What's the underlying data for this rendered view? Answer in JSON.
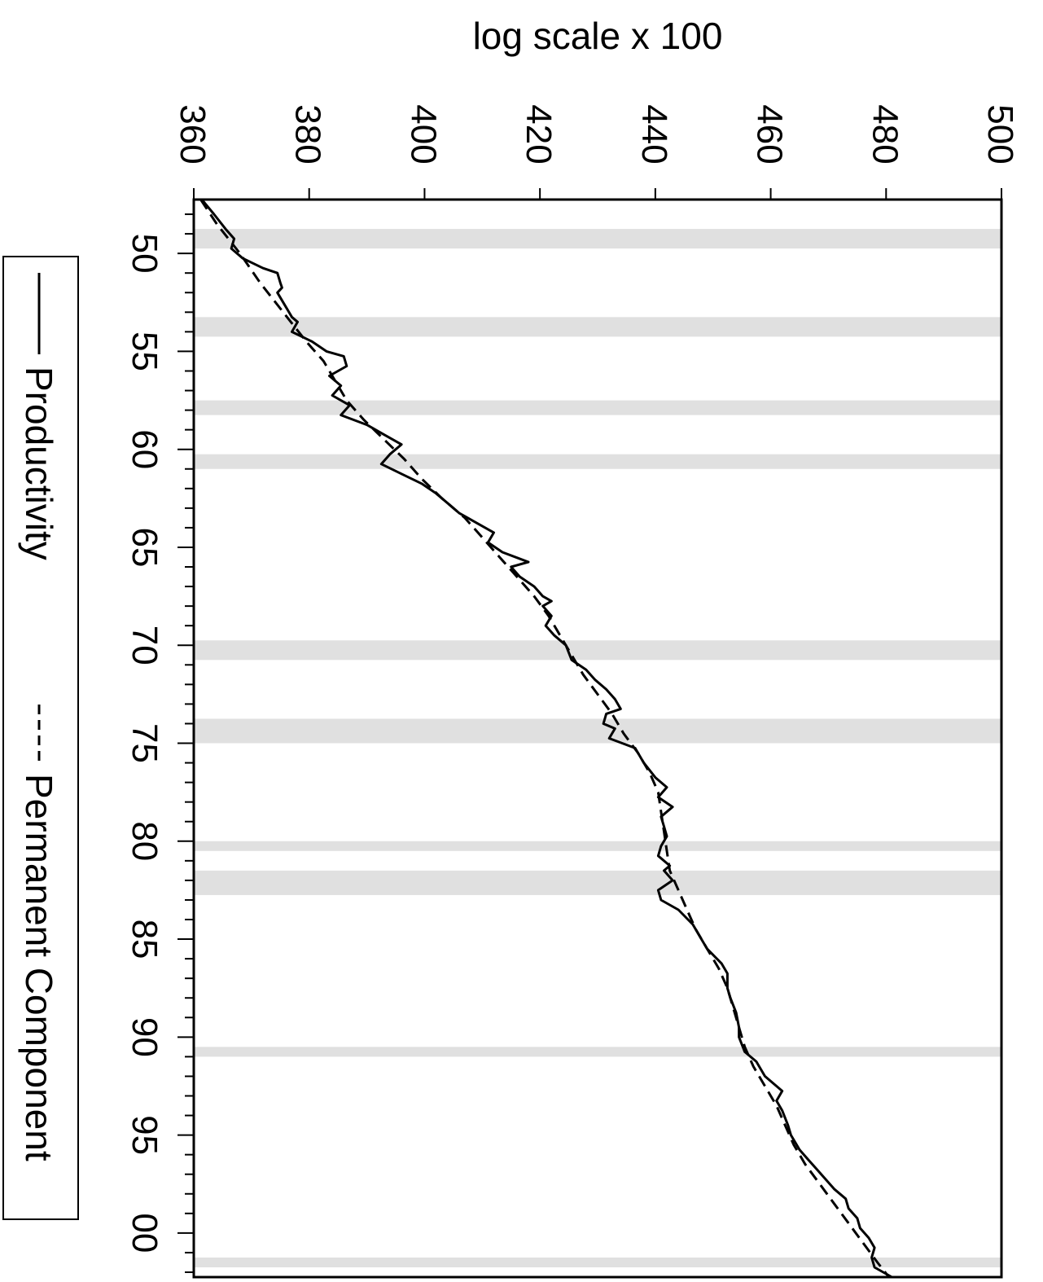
{
  "chart_data": {
    "type": "line",
    "title": "log scale x 100",
    "xlabel": "",
    "ylabel": "",
    "x_range": [
      1947.25,
      2002.25
    ],
    "y_range": [
      360,
      500
    ],
    "x_tick_labels": [
      {
        "x": 1950,
        "label": "50"
      },
      {
        "x": 1955,
        "label": "55"
      },
      {
        "x": 1960,
        "label": "60"
      },
      {
        "x": 1965,
        "label": "65"
      },
      {
        "x": 1970,
        "label": "70"
      },
      {
        "x": 1975,
        "label": "75"
      },
      {
        "x": 1980,
        "label": "80"
      },
      {
        "x": 1985,
        "label": "85"
      },
      {
        "x": 1990,
        "label": "90"
      },
      {
        "x": 1995,
        "label": "95"
      },
      {
        "x": 2000,
        "label": "00"
      }
    ],
    "y_ticks": [
      360,
      380,
      400,
      420,
      440,
      460,
      480,
      500
    ],
    "recession_bands": [
      [
        1948.75,
        1949.75
      ],
      [
        1953.25,
        1954.25
      ],
      [
        1957.5,
        1958.25
      ],
      [
        1960.25,
        1961.0
      ],
      [
        1969.75,
        1970.75
      ],
      [
        1973.75,
        1975.0
      ],
      [
        1980.0,
        1980.5
      ],
      [
        1981.5,
        1982.75
      ],
      [
        1990.5,
        1991.0
      ],
      [
        2001.25,
        2001.75
      ]
    ],
    "legend": {
      "placement": "right",
      "entries": [
        "Productivity",
        "Permanent Component"
      ]
    },
    "series": [
      {
        "name": "Productivity",
        "style": "solid",
        "points": [
          [
            1947.25,
            361.4
          ],
          [
            1948.0,
            363.5
          ],
          [
            1948.75,
            365.5
          ],
          [
            1949.25,
            367.0
          ],
          [
            1949.75,
            366.5
          ],
          [
            1950.25,
            368.5
          ],
          [
            1950.75,
            372.0
          ],
          [
            1951.0,
            374.5
          ],
          [
            1951.5,
            375.0
          ],
          [
            1951.75,
            375.3
          ],
          [
            1952.0,
            374.5
          ],
          [
            1952.75,
            376.0
          ],
          [
            1953.25,
            377.0
          ],
          [
            1953.5,
            378.0
          ],
          [
            1954.0,
            377.0
          ],
          [
            1954.5,
            380.5
          ],
          [
            1955.0,
            383.0
          ],
          [
            1955.25,
            386.0
          ],
          [
            1955.75,
            386.5
          ],
          [
            1956.25,
            383.5
          ],
          [
            1956.75,
            385.5
          ],
          [
            1957.25,
            384.0
          ],
          [
            1957.75,
            387.0
          ],
          [
            1958.25,
            385.5
          ],
          [
            1958.75,
            390.0
          ],
          [
            1959.25,
            393.0
          ],
          [
            1959.75,
            396.0
          ],
          [
            1960.25,
            394.0
          ],
          [
            1960.75,
            392.5
          ],
          [
            1961.25,
            396.0
          ],
          [
            1961.75,
            399.5
          ],
          [
            1962.25,
            402.0
          ],
          [
            1962.75,
            404.0
          ],
          [
            1963.25,
            406.0
          ],
          [
            1963.75,
            409.0
          ],
          [
            1964.25,
            412.0
          ],
          [
            1964.75,
            411.0
          ],
          [
            1965.25,
            413.5
          ],
          [
            1965.75,
            418.0
          ],
          [
            1966.0,
            415.0
          ],
          [
            1966.5,
            416.5
          ],
          [
            1967.0,
            419.0
          ],
          [
            1967.5,
            420.5
          ],
          [
            1967.75,
            422.0
          ],
          [
            1968.0,
            420.5
          ],
          [
            1968.5,
            422.0
          ],
          [
            1969.0,
            421.0
          ],
          [
            1969.5,
            422.5
          ],
          [
            1970.0,
            424.5
          ],
          [
            1970.75,
            425.5
          ],
          [
            1971.25,
            428.0
          ],
          [
            1971.75,
            429.5
          ],
          [
            1972.25,
            431.5
          ],
          [
            1972.75,
            433.0
          ],
          [
            1973.25,
            434.0
          ],
          [
            1973.5,
            431.5
          ],
          [
            1974.0,
            431.0
          ],
          [
            1974.25,
            433.0
          ],
          [
            1974.75,
            432.0
          ],
          [
            1975.25,
            436.5
          ],
          [
            1976.0,
            438.0
          ],
          [
            1976.75,
            440.0
          ],
          [
            1977.25,
            442.0
          ],
          [
            1977.75,
            440.5
          ],
          [
            1978.25,
            443.0
          ],
          [
            1978.75,
            441.0
          ],
          [
            1979.25,
            441.5
          ],
          [
            1979.75,
            442.0
          ],
          [
            1980.25,
            441.0
          ],
          [
            1980.75,
            440.5
          ],
          [
            1981.25,
            442.5
          ],
          [
            1981.5,
            441.5
          ],
          [
            1982.0,
            443.0
          ],
          [
            1982.5,
            440.5
          ],
          [
            1983.0,
            441.0
          ],
          [
            1983.5,
            444.0
          ],
          [
            1984.25,
            446.5
          ],
          [
            1985.0,
            448.0
          ],
          [
            1985.5,
            449.0
          ],
          [
            1986.25,
            451.5
          ],
          [
            1986.75,
            452.5
          ],
          [
            1987.5,
            452.5
          ],
          [
            1988.0,
            453.0
          ],
          [
            1988.75,
            454.0
          ],
          [
            1989.5,
            454.5
          ],
          [
            1990.0,
            454.5
          ],
          [
            1990.75,
            455.5
          ],
          [
            1991.25,
            457.5
          ],
          [
            1992.0,
            459.0
          ],
          [
            1992.5,
            461.0
          ],
          [
            1992.75,
            462.0
          ],
          [
            1993.25,
            461.0
          ],
          [
            1993.75,
            462.0
          ],
          [
            1994.5,
            463.0
          ],
          [
            1995.0,
            463.5
          ],
          [
            1995.75,
            465.0
          ],
          [
            1996.25,
            466.5
          ],
          [
            1996.75,
            468.0
          ],
          [
            1997.25,
            469.5
          ],
          [
            1997.75,
            471.0
          ],
          [
            1998.25,
            473.0
          ],
          [
            1998.75,
            473.5
          ],
          [
            1999.25,
            475.0
          ],
          [
            1999.75,
            475.5
          ],
          [
            2000.25,
            477.0
          ],
          [
            2000.75,
            478.0
          ],
          [
            2001.25,
            477.5
          ],
          [
            2001.75,
            478.0
          ],
          [
            2002.25,
            481.0
          ]
        ]
      },
      {
        "name": "Permanent Component",
        "style": "dashed",
        "points": [
          [
            1947.25,
            361.2
          ],
          [
            1948.5,
            364.0
          ],
          [
            1950.0,
            368.0
          ],
          [
            1951.5,
            371.5
          ],
          [
            1953.0,
            375.5
          ],
          [
            1954.5,
            379.5
          ],
          [
            1955.5,
            382.5
          ],
          [
            1956.5,
            384.5
          ],
          [
            1957.5,
            386.5
          ],
          [
            1958.5,
            389.5
          ],
          [
            1959.5,
            393.0
          ],
          [
            1960.5,
            396.5
          ],
          [
            1961.5,
            399.5
          ],
          [
            1962.5,
            403.0
          ],
          [
            1963.5,
            407.0
          ],
          [
            1964.5,
            410.0
          ],
          [
            1965.5,
            413.0
          ],
          [
            1966.5,
            416.0
          ],
          [
            1967.5,
            419.0
          ],
          [
            1968.5,
            421.5
          ],
          [
            1969.5,
            423.5
          ],
          [
            1970.5,
            425.5
          ],
          [
            1971.5,
            427.5
          ],
          [
            1972.5,
            430.0
          ],
          [
            1973.5,
            432.5
          ],
          [
            1974.5,
            434.5
          ],
          [
            1975.5,
            437.0
          ],
          [
            1976.5,
            439.0
          ],
          [
            1977.5,
            440.5
          ],
          [
            1978.5,
            441.0
          ],
          [
            1979.5,
            441.5
          ],
          [
            1980.5,
            442.0
          ],
          [
            1981.5,
            442.5
          ],
          [
            1982.5,
            444.0
          ],
          [
            1983.5,
            445.5
          ],
          [
            1984.5,
            447.0
          ],
          [
            1985.5,
            449.0
          ],
          [
            1986.5,
            451.0
          ],
          [
            1987.5,
            452.5
          ],
          [
            1988.5,
            453.5
          ],
          [
            1989.5,
            454.5
          ],
          [
            1990.5,
            455.5
          ],
          [
            1991.5,
            457.0
          ],
          [
            1992.5,
            459.0
          ],
          [
            1993.5,
            461.0
          ],
          [
            1994.5,
            462.5
          ],
          [
            1995.5,
            464.0
          ],
          [
            1996.5,
            466.0
          ],
          [
            1997.5,
            468.5
          ],
          [
            1998.5,
            471.0
          ],
          [
            1999.5,
            473.5
          ],
          [
            2000.5,
            476.0
          ],
          [
            2001.5,
            478.5
          ],
          [
            2002.25,
            480.5
          ]
        ]
      }
    ]
  }
}
